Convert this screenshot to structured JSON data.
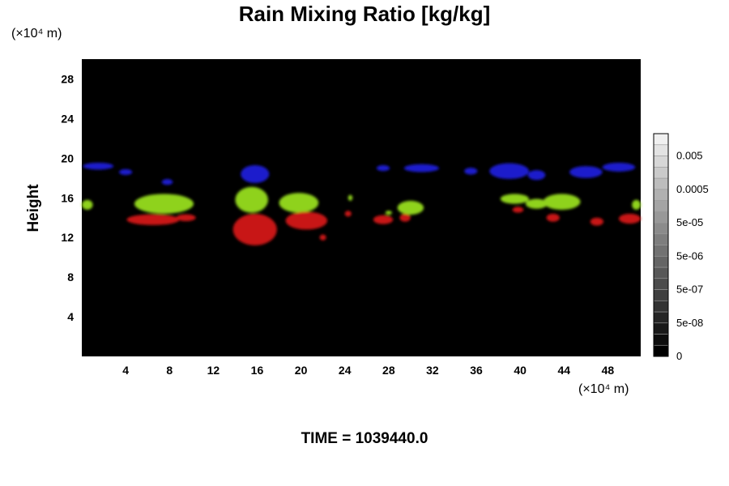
{
  "chart_data": {
    "type": "heatmap",
    "title": "Rain Mixing Ratio [kg/kg]",
    "xlabel": "",
    "ylabel": "Height",
    "x_unit_label": "(×10⁴ m)",
    "y_unit_label": "(×10⁴ m)",
    "xlim": [
      0,
      51
    ],
    "ylim": [
      0,
      30
    ],
    "x_ticks": [
      4,
      8,
      12,
      16,
      20,
      24,
      28,
      32,
      36,
      40,
      44,
      48
    ],
    "y_ticks": [
      4,
      8,
      12,
      16,
      20,
      24,
      28
    ],
    "background_color": "#000000",
    "grid": false,
    "colorbar": {
      "labels": [
        "0",
        "5e-08",
        "5e-07",
        "5e-06",
        "5e-05",
        "0.0005",
        "0.005"
      ],
      "levels": 20,
      "placement": "right"
    },
    "layers": [
      {
        "color": "#1a1acc",
        "blobs": [
          {
            "x": 1.5,
            "y": 19.2,
            "rx": 1.4,
            "ry": 0.35
          },
          {
            "x": 4.0,
            "y": 18.6,
            "rx": 0.6,
            "ry": 0.3
          },
          {
            "x": 7.8,
            "y": 17.6,
            "rx": 0.5,
            "ry": 0.3
          },
          {
            "x": 15.8,
            "y": 18.4,
            "rx": 1.3,
            "ry": 0.9
          },
          {
            "x": 27.5,
            "y": 19.0,
            "rx": 0.6,
            "ry": 0.3
          },
          {
            "x": 31.0,
            "y": 19.0,
            "rx": 1.6,
            "ry": 0.4
          },
          {
            "x": 35.5,
            "y": 18.7,
            "rx": 0.6,
            "ry": 0.35
          },
          {
            "x": 39.0,
            "y": 18.7,
            "rx": 1.8,
            "ry": 0.8
          },
          {
            "x": 41.5,
            "y": 18.3,
            "rx": 0.8,
            "ry": 0.5
          },
          {
            "x": 46.0,
            "y": 18.6,
            "rx": 1.5,
            "ry": 0.6
          },
          {
            "x": 49.0,
            "y": 19.1,
            "rx": 1.5,
            "ry": 0.45
          }
        ]
      },
      {
        "color": "#8fd21e",
        "blobs": [
          {
            "x": 0.5,
            "y": 15.3,
            "rx": 0.5,
            "ry": 0.5
          },
          {
            "x": 7.5,
            "y": 15.4,
            "rx": 2.7,
            "ry": 1.0
          },
          {
            "x": 15.5,
            "y": 15.8,
            "rx": 1.5,
            "ry": 1.3
          },
          {
            "x": 19.8,
            "y": 15.5,
            "rx": 1.8,
            "ry": 1.0
          },
          {
            "x": 24.5,
            "y": 16.0,
            "rx": 0.2,
            "ry": 0.3
          },
          {
            "x": 28.0,
            "y": 14.5,
            "rx": 0.3,
            "ry": 0.2
          },
          {
            "x": 30.0,
            "y": 15.0,
            "rx": 1.2,
            "ry": 0.7
          },
          {
            "x": 39.5,
            "y": 15.9,
            "rx": 1.3,
            "ry": 0.5
          },
          {
            "x": 41.5,
            "y": 15.4,
            "rx": 1.0,
            "ry": 0.5
          },
          {
            "x": 43.8,
            "y": 15.6,
            "rx": 1.7,
            "ry": 0.8
          },
          {
            "x": 50.6,
            "y": 15.3,
            "rx": 0.4,
            "ry": 0.5
          }
        ]
      },
      {
        "color": "#c81414",
        "blobs": [
          {
            "x": 6.5,
            "y": 13.8,
            "rx": 2.4,
            "ry": 0.55
          },
          {
            "x": 9.5,
            "y": 14.0,
            "rx": 0.9,
            "ry": 0.35
          },
          {
            "x": 15.8,
            "y": 12.8,
            "rx": 2.0,
            "ry": 1.6
          },
          {
            "x": 20.5,
            "y": 13.7,
            "rx": 1.9,
            "ry": 0.9
          },
          {
            "x": 22.0,
            "y": 12.0,
            "rx": 0.3,
            "ry": 0.3
          },
          {
            "x": 24.3,
            "y": 14.4,
            "rx": 0.3,
            "ry": 0.3
          },
          {
            "x": 27.5,
            "y": 13.8,
            "rx": 0.9,
            "ry": 0.45
          },
          {
            "x": 29.5,
            "y": 14.0,
            "rx": 0.5,
            "ry": 0.4
          },
          {
            "x": 39.8,
            "y": 14.8,
            "rx": 0.5,
            "ry": 0.3
          },
          {
            "x": 43.0,
            "y": 14.0,
            "rx": 0.6,
            "ry": 0.4
          },
          {
            "x": 47.0,
            "y": 13.6,
            "rx": 0.6,
            "ry": 0.4
          },
          {
            "x": 50.0,
            "y": 13.9,
            "rx": 1.0,
            "ry": 0.5
          }
        ]
      }
    ]
  },
  "footer": {
    "time_label": "TIME = 1039440.0"
  }
}
